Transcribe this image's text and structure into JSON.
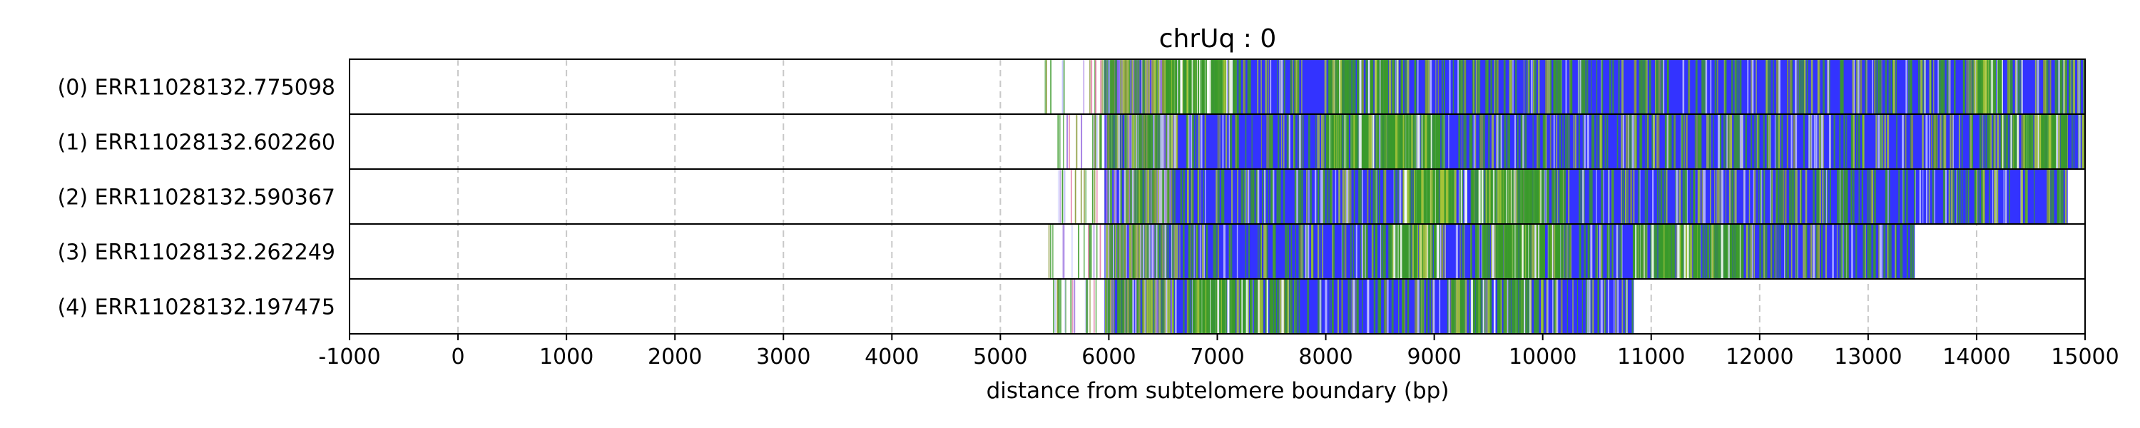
{
  "chart_data": {
    "type": "read-alignment",
    "title": "chrUq : 0",
    "xlabel": "distance from subtelomere boundary (bp)",
    "ylabel": "",
    "xlim": [
      -1000,
      15000
    ],
    "x_ticks": [
      -1000,
      0,
      1000,
      2000,
      3000,
      4000,
      5000,
      6000,
      7000,
      8000,
      9000,
      10000,
      11000,
      12000,
      13000,
      14000,
      15000
    ],
    "x_tick_labels": [
      "-1000",
      "0",
      "1000",
      "2000",
      "3000",
      "4000",
      "5000",
      "6000",
      "7000",
      "8000",
      "9000",
      "10000",
      "11000",
      "12000",
      "13000",
      "14000",
      "15000"
    ],
    "grid": "vertical dashed",
    "colors": {
      "repeat_main": "#3333ff",
      "green": "#3a9a2a",
      "yellow_green": "#a8c43a",
      "light": "#c8c8ff",
      "purple": "#9a70e0",
      "pink": "#e070a0",
      "olive": "#8a9a3a"
    },
    "reads": [
      {
        "label": "(0) ERR11028132.775098",
        "sparse_start": 5400,
        "dense_start": 5960,
        "end": 15000
      },
      {
        "label": "(1) ERR11028132.602260",
        "sparse_start": 5500,
        "dense_start": 5960,
        "end": 15000
      },
      {
        "label": "(2) ERR11028132.590367",
        "sparse_start": 5450,
        "dense_start": 5960,
        "end": 14840
      },
      {
        "label": "(3) ERR11028132.262249",
        "sparse_start": 5430,
        "dense_start": 5960,
        "end": 13430
      },
      {
        "label": "(4) ERR11028132.197475",
        "sparse_start": 5450,
        "dense_start": 5960,
        "end": 10840
      }
    ]
  }
}
